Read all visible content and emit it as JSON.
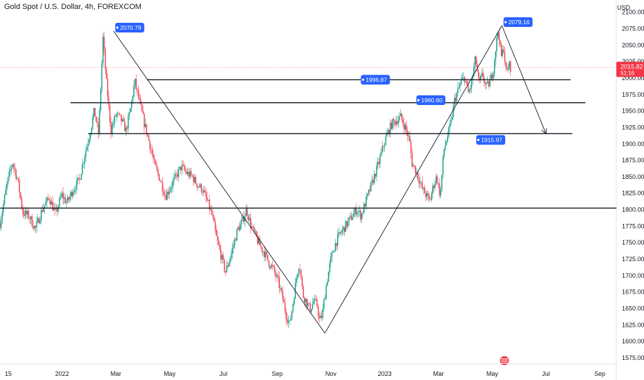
{
  "header": {
    "title": "Gold Spot / U.S. Dollar, 4h, FOREXCOM",
    "currency": "USD"
  },
  "chart_data": {
    "type": "candlestick",
    "title": "Gold Spot / U.S. Dollar, 4h, FOREXCOM",
    "ylabel": "USD",
    "ylim": [
      1565,
      2118
    ],
    "y_ticks": [
      1575,
      1600,
      1625,
      1650,
      1675,
      1700,
      1725,
      1750,
      1775,
      1800,
      1825,
      1850,
      1875,
      1900,
      1925,
      1950,
      1975,
      2000,
      2025,
      2050,
      2075,
      2100
    ],
    "x_ticks": [
      "15",
      "2022",
      "Mar",
      "May",
      "Jul",
      "Sep",
      "Nov",
      "2023",
      "Mar",
      "May",
      "Jul",
      "Sep"
    ],
    "price_path": [
      [
        0.0,
        1779
      ],
      [
        0.8,
        1838
      ],
      [
        1.4,
        1872
      ],
      [
        2.0,
        1845
      ],
      [
        2.6,
        1795
      ],
      [
        3.3,
        1790
      ],
      [
        4.0,
        1770
      ],
      [
        4.8,
        1800
      ],
      [
        5.6,
        1818
      ],
      [
        6.3,
        1792
      ],
      [
        7.0,
        1822
      ],
      [
        7.6,
        1810
      ],
      [
        8.3,
        1830
      ],
      [
        9.0,
        1845
      ],
      [
        9.6,
        1882
      ],
      [
        10.2,
        1915
      ],
      [
        10.7,
        1950
      ],
      [
        11.2,
        1915
      ],
      [
        11.7,
        2060
      ],
      [
        12.1,
        1990
      ],
      [
        12.6,
        1920
      ],
      [
        13.2,
        1945
      ],
      [
        13.8,
        1935
      ],
      [
        14.3,
        1920
      ],
      [
        14.8,
        1950
      ],
      [
        15.3,
        1995
      ],
      [
        15.8,
        1965
      ],
      [
        16.4,
        1930
      ],
      [
        17.0,
        1900
      ],
      [
        17.6,
        1865
      ],
      [
        18.2,
        1845
      ],
      [
        18.8,
        1820
      ],
      [
        19.4,
        1835
      ],
      [
        20.0,
        1850
      ],
      [
        20.6,
        1865
      ],
      [
        21.2,
        1855
      ],
      [
        21.8,
        1850
      ],
      [
        22.4,
        1838
      ],
      [
        23.0,
        1830
      ],
      [
        23.6,
        1810
      ],
      [
        24.1,
        1790
      ],
      [
        24.6,
        1755
      ],
      [
        25.1,
        1730
      ],
      [
        25.6,
        1705
      ],
      [
        26.1,
        1725
      ],
      [
        26.6,
        1750
      ],
      [
        27.0,
        1770
      ],
      [
        27.5,
        1780
      ],
      [
        28.0,
        1800
      ],
      [
        28.5,
        1775
      ],
      [
        29.0,
        1760
      ],
      [
        29.5,
        1745
      ],
      [
        30.0,
        1735
      ],
      [
        30.5,
        1720
      ],
      [
        31.0,
        1710
      ],
      [
        31.6,
        1690
      ],
      [
        32.1,
        1665
      ],
      [
        32.5,
        1640
      ],
      [
        32.9,
        1625
      ],
      [
        33.3,
        1660
      ],
      [
        33.7,
        1700
      ],
      [
        34.0,
        1720
      ],
      [
        34.4,
        1670
      ],
      [
        34.8,
        1660
      ],
      [
        35.2,
        1648
      ],
      [
        35.6,
        1660
      ],
      [
        36.0,
        1655
      ],
      [
        36.3,
        1630
      ],
      [
        36.6,
        1640
      ],
      [
        37.0,
        1680
      ],
      [
        37.5,
        1720
      ],
      [
        38.0,
        1745
      ],
      [
        38.5,
        1760
      ],
      [
        39.0,
        1770
      ],
      [
        39.5,
        1780
      ],
      [
        40.0,
        1790
      ],
      [
        40.5,
        1800
      ],
      [
        41.0,
        1790
      ],
      [
        41.5,
        1810
      ],
      [
        42.0,
        1830
      ],
      [
        42.5,
        1850
      ],
      [
        43.0,
        1870
      ],
      [
        43.5,
        1895
      ],
      [
        44.0,
        1915
      ],
      [
        44.5,
        1930
      ],
      [
        45.0,
        1935
      ],
      [
        45.5,
        1940
      ],
      [
        46.0,
        1925
      ],
      [
        46.5,
        1905
      ],
      [
        46.8,
        1870
      ],
      [
        47.2,
        1860
      ],
      [
        47.6,
        1845
      ],
      [
        48.0,
        1830
      ],
      [
        48.4,
        1822
      ],
      [
        48.8,
        1812
      ],
      [
        49.2,
        1835
      ],
      [
        49.6,
        1850
      ],
      [
        50.0,
        1820
      ],
      [
        50.4,
        1890
      ],
      [
        50.8,
        1910
      ],
      [
        51.2,
        1930
      ],
      [
        51.6,
        1965
      ],
      [
        52.0,
        1980
      ],
      [
        52.4,
        1995
      ],
      [
        52.8,
        2000
      ],
      [
        53.2,
        1975
      ],
      [
        53.6,
        1995
      ],
      [
        54.0,
        2030
      ],
      [
        54.4,
        1990
      ],
      [
        54.8,
        2005
      ],
      [
        55.2,
        1985
      ],
      [
        55.6,
        1992
      ],
      [
        56.0,
        2010
      ],
      [
        56.3,
        2045
      ],
      [
        56.6,
        2075
      ],
      [
        56.9,
        2030
      ],
      [
        57.2,
        2045
      ],
      [
        57.5,
        2005
      ],
      [
        57.8,
        2020
      ],
      [
        58.0,
        2015
      ]
    ],
    "horizontal_levels": [
      {
        "value": 1996.87,
        "x_from": 16.7,
        "x_to": 64.8
      },
      {
        "value": 1962,
        "x_from": 8.0,
        "x_to": 66.5
      },
      {
        "value": 1915,
        "x_from": 10.0,
        "x_to": 65.0
      },
      {
        "value": 1802,
        "x_from": 0.0,
        "x_to": 70.0
      }
    ],
    "trend_lines": [
      {
        "from": [
          12.9,
          2070.79
        ],
        "to": [
          36.9,
          1612
        ]
      },
      {
        "from": [
          36.9,
          1612
        ],
        "to": [
          57.0,
          2079.16
        ]
      },
      {
        "from": [
          57.0,
          2079.16
        ],
        "to": [
          62.0,
          1915
        ]
      }
    ],
    "price_labels": [
      {
        "text": "2070.79",
        "x": 13.4,
        "value": 2070.79,
        "anchor": "above"
      },
      {
        "text": "1996.87",
        "x": 41.3,
        "value": 1996.87,
        "anchor": "on"
      },
      {
        "text": "1960.60",
        "x": 47.6,
        "value": 1960.6,
        "anchor": "above"
      },
      {
        "text": "1915.97",
        "x": 54.4,
        "value": 1915.97,
        "anchor": "below"
      },
      {
        "text": "2079.16",
        "x": 57.5,
        "value": 2079.16,
        "anchor": "above"
      }
    ],
    "last_price": {
      "value": 2015.82,
      "text": "2015.82",
      "countdown": "51:16"
    },
    "colors": {
      "up": "#089981",
      "down": "#f23645",
      "label": "#2962ff",
      "last": "#f23645",
      "line": "#131722"
    }
  }
}
